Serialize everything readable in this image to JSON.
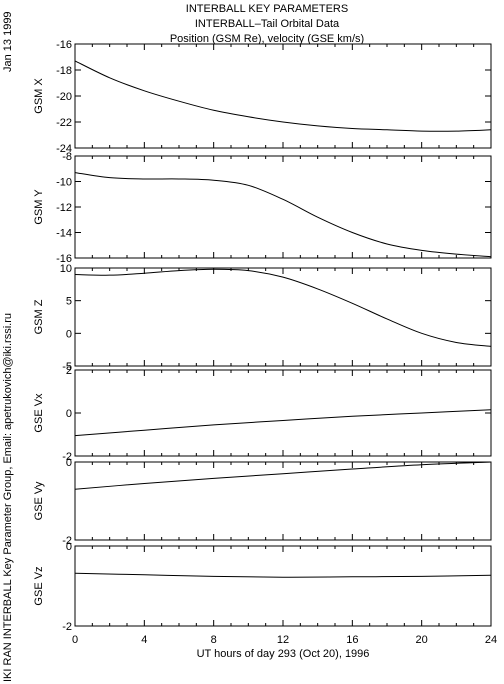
{
  "titles": {
    "line1": "INTERBALL KEY PARAMETERS",
    "line2": "INTERBALL–Tail Orbital Data",
    "line3": "Position (GSM Re), velocity (GSE km/s)"
  },
  "side": {
    "date": "Jan 13 1999",
    "credit": "IKI RAN INTERBALL Key Parameter Group, Email: apetrukovich@iki.rssi.ru"
  },
  "chart_data": {
    "type": "line",
    "xlabel": "UT hours of day 293 (Oct 20), 1996",
    "xlim": [
      0,
      24
    ],
    "xticks": [
      "0",
      "4",
      "8",
      "12",
      "16",
      "20",
      "24"
    ],
    "panels": [
      {
        "ylabel": "GSM X",
        "ylim": [
          -24,
          -16
        ],
        "yticks": [
          "-16",
          "-18",
          "-20",
          "-22",
          "-24"
        ],
        "x": [
          0,
          2,
          4,
          6,
          8,
          10,
          12,
          14,
          16,
          18,
          20,
          22,
          24
        ],
        "y": [
          -17.3,
          -18.6,
          -19.6,
          -20.4,
          -21.1,
          -21.6,
          -22.0,
          -22.3,
          -22.5,
          -22.6,
          -22.7,
          -22.7,
          -22.6
        ]
      },
      {
        "ylabel": "GSM Y",
        "ylim": [
          -16,
          -8
        ],
        "yticks": [
          "-8",
          "-10",
          "-12",
          "-14",
          "-16"
        ],
        "x": [
          0,
          2,
          4,
          6,
          8,
          10,
          12,
          14,
          16,
          18,
          20,
          22,
          24
        ],
        "y": [
          -9.3,
          -9.7,
          -9.8,
          -9.8,
          -9.9,
          -10.3,
          -11.4,
          -12.8,
          -14.0,
          -14.9,
          -15.4,
          -15.7,
          -15.9
        ]
      },
      {
        "ylabel": "GSM Z",
        "ylim": [
          -5,
          10
        ],
        "yticks": [
          "10",
          "5",
          "0",
          "-5"
        ],
        "x": [
          0,
          2,
          4,
          6,
          8,
          10,
          12,
          14,
          16,
          18,
          20,
          22,
          24
        ],
        "y": [
          9.0,
          8.9,
          9.2,
          9.6,
          9.8,
          9.6,
          8.6,
          6.8,
          4.6,
          2.2,
          0.0,
          -1.4,
          -2.0
        ]
      },
      {
        "ylabel": "GSE Vx",
        "ylim": [
          -2,
          2
        ],
        "yticks": [
          "2",
          "0",
          "-2"
        ],
        "x": [
          0,
          4,
          8,
          12,
          16,
          20,
          24
        ],
        "y": [
          -1.05,
          -0.8,
          -0.55,
          -0.35,
          -0.15,
          0.0,
          0.15
        ]
      },
      {
        "ylabel": "GSE Vy",
        "ylim": [
          -2,
          0
        ],
        "yticks": [
          "0",
          "-2"
        ],
        "x": [
          0,
          4,
          8,
          12,
          16,
          20,
          24
        ],
        "y": [
          -0.7,
          -0.55,
          -0.42,
          -0.3,
          -0.18,
          -0.07,
          0.0
        ]
      },
      {
        "ylabel": "GSE Vz",
        "ylim": [
          -2,
          0
        ],
        "yticks": [
          "0",
          "-2"
        ],
        "x": [
          0,
          4,
          8,
          12,
          16,
          20,
          24
        ],
        "y": [
          -0.68,
          -0.72,
          -0.76,
          -0.78,
          -0.77,
          -0.76,
          -0.73
        ]
      }
    ]
  }
}
